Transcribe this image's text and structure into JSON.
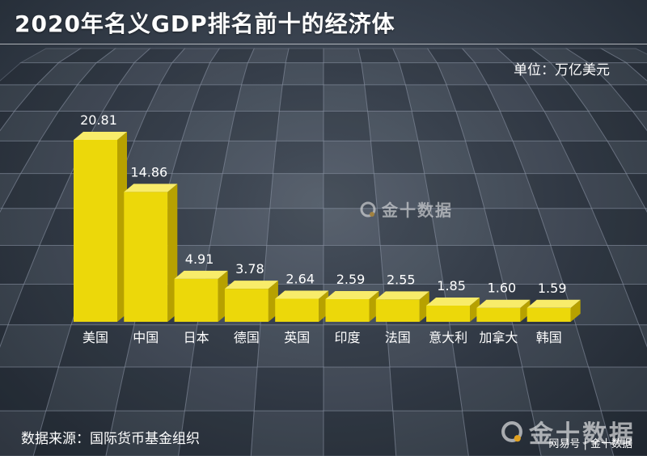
{
  "header": {
    "title": "2020年名义GDP排名前十的经济体",
    "unit": "单位：万亿美元"
  },
  "footer": {
    "source": "数据来源：国际货币基金组织"
  },
  "watermark": {
    "center_text": "金十数据",
    "corner_text": "金十数据",
    "corner_sub": "网易号 | 金十数据",
    "logo_icon": "q-logo-icon"
  },
  "colors": {
    "bar_front": "#ecd80a",
    "bar_top": "#f8ec6a",
    "bar_side": "#b7a100",
    "text": "#ffffff"
  },
  "chart_data": {
    "type": "bar",
    "title": "2020年名义GDP排名前十的经济体",
    "ylabel": "单位：万亿美元",
    "categories": [
      "美国",
      "中国",
      "日本",
      "德国",
      "英国",
      "印度",
      "法国",
      "意大利",
      "加拿大",
      "韩国"
    ],
    "values": [
      20.81,
      14.86,
      4.91,
      3.78,
      2.64,
      2.59,
      2.55,
      1.85,
      1.6,
      1.59
    ],
    "value_labels": [
      "20.81",
      "14.86",
      "4.91",
      "3.78",
      "2.64",
      "2.59",
      "2.55",
      "1.85",
      "1.60",
      "1.59"
    ],
    "ylim": [
      0,
      21
    ],
    "grid": false,
    "legend": "none"
  }
}
